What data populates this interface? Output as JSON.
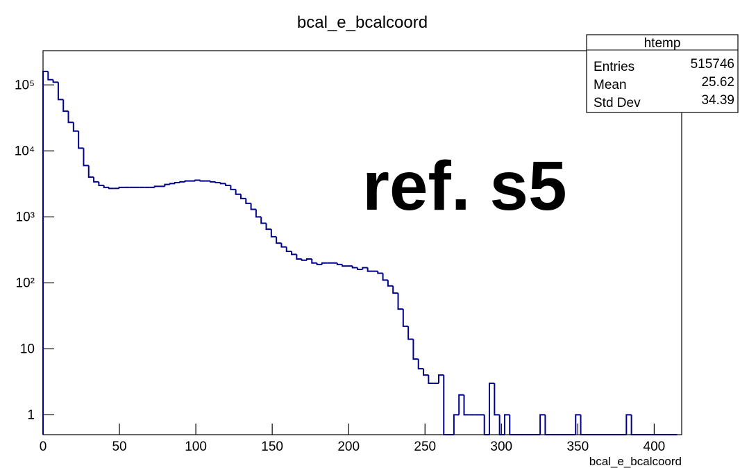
{
  "chart_data": {
    "type": "histogram",
    "title": "bcal_e_bcalcoord",
    "x_label": "bcal_e_bcalcoord",
    "annotation": "ref. s5",
    "stats": {
      "name": "htemp",
      "rows": [
        [
          "Entries",
          "515746"
        ],
        [
          "Mean",
          "25.62"
        ],
        [
          "Std Dev",
          "34.39"
        ]
      ]
    },
    "color": "#00008b",
    "log_y": true,
    "xlim": [
      0,
      418
    ],
    "xticks": [
      0,
      50,
      100,
      150,
      200,
      250,
      300,
      350,
      400
    ],
    "ylim": [
      0.5,
      330000
    ],
    "yticks": [
      1,
      10,
      {
        "value": 100,
        "label": "10²"
      },
      {
        "value": 1000,
        "label": "10³"
      },
      {
        "value": 10000,
        "label": "10⁴"
      },
      {
        "value": 100000,
        "label": "10⁵"
      }
    ],
    "bins": [
      0,
      3.32,
      6.64,
      9.96,
      13.28,
      16.6,
      19.92,
      23.24,
      26.56,
      29.88,
      33.2,
      36.52,
      39.84,
      43.16,
      46.48,
      49.8,
      53.12,
      56.44,
      59.76,
      63.08,
      66.4,
      69.72,
      73.04,
      76.36,
      79.68,
      83,
      86.32,
      89.64,
      92.96,
      96.28,
      99.6,
      102.92,
      106.24,
      109.56,
      112.88,
      116.2,
      119.52,
      122.84,
      126.16,
      129.48,
      132.8,
      136.12,
      139.44,
      142.76,
      146.08,
      149.4,
      152.72,
      156.04,
      159.36,
      162.68,
      166,
      169.32,
      172.64,
      175.96,
      179.28,
      182.6,
      185.92,
      189.24,
      192.56,
      195.88,
      199.2,
      202.52,
      205.84,
      209.16,
      212.48,
      215.8,
      219.12,
      222.44,
      225.76,
      229.08,
      232.4,
      235.72,
      239.04,
      242.36,
      245.68,
      249,
      252.32,
      255.64,
      258.96,
      262.28,
      265.6,
      268.92,
      272.24,
      275.56,
      278.88,
      282.2,
      285.52,
      288.84,
      292.16,
      295.48,
      298.8,
      302.12,
      305.44,
      308.76,
      312.08,
      315.4,
      318.72,
      322.04,
      325.36,
      328.68,
      332,
      335.32,
      338.64,
      341.96,
      345.28,
      348.6,
      351.92,
      355.24,
      358.56,
      361.88,
      365.2,
      368.52,
      371.84,
      375.16,
      378.48,
      381.8,
      385.12,
      388.44,
      391.76,
      395.08,
      398.4,
      401.72,
      405.04,
      408.36,
      411.68,
      415
    ],
    "counts": [
      160000,
      120000,
      110000,
      60000,
      40000,
      27000,
      20000,
      11000,
      6000,
      4000,
      3400,
      3000,
      2800,
      2700,
      2700,
      2800,
      2800,
      2800,
      2800,
      2800,
      2800,
      2800,
      2900,
      2900,
      3100,
      3200,
      3300,
      3400,
      3500,
      3500,
      3600,
      3500,
      3500,
      3400,
      3300,
      3200,
      3000,
      2600,
      2200,
      1900,
      1600,
      1300,
      1000,
      800,
      650,
      500,
      400,
      350,
      300,
      270,
      230,
      220,
      230,
      200,
      190,
      200,
      200,
      200,
      190,
      180,
      180,
      170,
      160,
      170,
      150,
      150,
      140,
      110,
      90,
      70,
      40,
      22,
      14,
      7,
      5,
      4,
      3,
      3,
      4,
      0,
      0,
      1,
      2,
      1,
      1,
      1,
      1,
      0,
      3,
      1,
      0,
      1,
      0,
      0,
      0,
      0,
      0,
      0,
      1,
      0,
      0,
      0,
      0,
      0,
      0,
      1,
      0,
      0,
      0,
      0,
      0,
      0,
      0,
      0,
      0,
      1,
      0,
      0,
      0,
      0,
      0,
      0,
      0,
      0,
      0
    ]
  }
}
